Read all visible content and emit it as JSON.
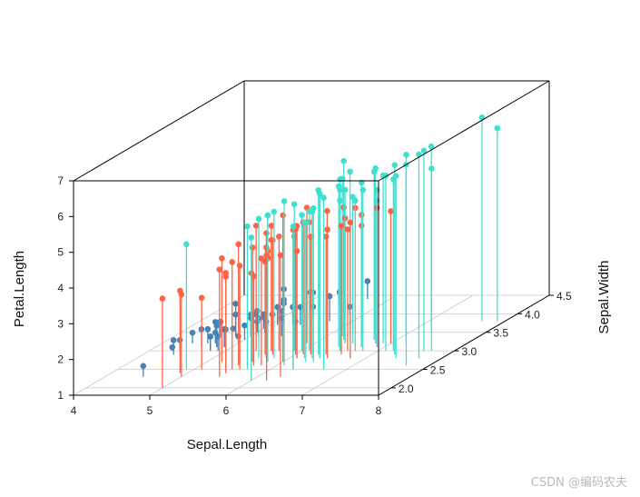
{
  "chart_data": {
    "type": "scatter3d",
    "xlabel": "Sepal.Length",
    "ylabel": "Sepal.Width",
    "zlabel": "Petal.Length",
    "xlim": [
      4,
      8
    ],
    "ylim": [
      1.8,
      4.5
    ],
    "zlim": [
      1,
      7
    ],
    "x_ticks": [
      "4",
      "5",
      "6",
      "7",
      "8"
    ],
    "y_ticks": [
      "2.0",
      "2.5",
      "3.0",
      "3.5",
      "4.0",
      "4.5"
    ],
    "z_ticks": [
      "1",
      "2",
      "3",
      "4",
      "5",
      "6",
      "7"
    ],
    "type_3d": "h",
    "grid": true,
    "series": [
      {
        "color": "#4682b4",
        "points": [
          [
            5.1,
            3.5,
            1.4
          ],
          [
            4.9,
            3.0,
            1.4
          ],
          [
            4.7,
            3.2,
            1.3
          ],
          [
            4.6,
            3.1,
            1.5
          ],
          [
            5.0,
            3.6,
            1.4
          ],
          [
            5.4,
            3.9,
            1.7
          ],
          [
            4.6,
            3.4,
            1.4
          ],
          [
            5.0,
            3.4,
            1.5
          ],
          [
            4.4,
            2.9,
            1.4
          ],
          [
            4.9,
            3.1,
            1.5
          ],
          [
            5.4,
            3.7,
            1.5
          ],
          [
            4.8,
            3.4,
            1.6
          ],
          [
            4.8,
            3.0,
            1.4
          ],
          [
            4.3,
            3.0,
            1.1
          ],
          [
            5.8,
            4.0,
            1.2
          ],
          [
            5.7,
            4.4,
            1.5
          ],
          [
            5.4,
            3.9,
            1.3
          ],
          [
            5.1,
            3.5,
            1.4
          ],
          [
            5.7,
            3.8,
            1.7
          ],
          [
            5.1,
            3.8,
            1.5
          ],
          [
            5.4,
            3.4,
            1.7
          ],
          [
            5.1,
            3.7,
            1.5
          ],
          [
            4.6,
            3.6,
            1.0
          ],
          [
            5.1,
            3.3,
            1.7
          ],
          [
            4.8,
            3.4,
            1.9
          ],
          [
            5.0,
            3.0,
            1.6
          ],
          [
            5.0,
            3.4,
            1.6
          ],
          [
            5.2,
            3.5,
            1.5
          ],
          [
            5.2,
            3.4,
            1.4
          ],
          [
            4.7,
            3.2,
            1.6
          ],
          [
            4.8,
            3.1,
            1.6
          ],
          [
            5.4,
            3.4,
            1.5
          ],
          [
            5.2,
            4.1,
            1.5
          ],
          [
            5.5,
            4.2,
            1.4
          ],
          [
            4.9,
            3.1,
            1.5
          ],
          [
            5.0,
            3.2,
            1.2
          ],
          [
            5.5,
            3.5,
            1.3
          ],
          [
            4.9,
            3.6,
            1.4
          ],
          [
            4.4,
            3.0,
            1.3
          ],
          [
            5.1,
            3.4,
            1.5
          ],
          [
            5.0,
            3.5,
            1.3
          ],
          [
            4.5,
            2.3,
            1.3
          ],
          [
            4.4,
            3.2,
            1.3
          ],
          [
            5.0,
            3.5,
            1.6
          ],
          [
            5.1,
            3.8,
            1.9
          ],
          [
            4.8,
            3.0,
            1.4
          ],
          [
            5.1,
            3.8,
            1.6
          ],
          [
            4.6,
            3.2,
            1.4
          ],
          [
            5.3,
            3.7,
            1.5
          ],
          [
            5.0,
            3.3,
            1.4
          ]
        ]
      },
      {
        "color": "#ff6347",
        "points": [
          [
            7.0,
            3.2,
            4.7
          ],
          [
            6.4,
            3.2,
            4.5
          ],
          [
            6.9,
            3.1,
            4.9
          ],
          [
            5.5,
            2.3,
            4.0
          ],
          [
            6.5,
            2.8,
            4.6
          ],
          [
            5.7,
            2.8,
            4.5
          ],
          [
            6.3,
            3.3,
            4.7
          ],
          [
            4.9,
            2.4,
            3.3
          ],
          [
            6.6,
            2.9,
            4.6
          ],
          [
            5.2,
            2.7,
            3.9
          ],
          [
            5.0,
            2.0,
            3.5
          ],
          [
            5.9,
            3.0,
            4.2
          ],
          [
            6.0,
            2.2,
            4.0
          ],
          [
            6.1,
            2.9,
            4.7
          ],
          [
            5.6,
            2.9,
            3.6
          ],
          [
            6.7,
            3.1,
            4.4
          ],
          [
            5.6,
            3.0,
            4.5
          ],
          [
            5.8,
            2.7,
            4.1
          ],
          [
            6.2,
            2.2,
            4.5
          ],
          [
            5.6,
            2.5,
            3.9
          ],
          [
            5.9,
            3.2,
            4.8
          ],
          [
            6.1,
            2.8,
            4.0
          ],
          [
            6.3,
            2.5,
            4.9
          ],
          [
            6.1,
            2.8,
            4.7
          ],
          [
            6.4,
            2.9,
            4.3
          ],
          [
            6.6,
            3.0,
            4.4
          ],
          [
            6.8,
            2.8,
            4.8
          ],
          [
            6.7,
            3.0,
            5.0
          ],
          [
            6.0,
            2.9,
            4.5
          ],
          [
            5.7,
            2.6,
            3.5
          ],
          [
            5.5,
            2.4,
            3.8
          ],
          [
            5.5,
            2.4,
            3.7
          ],
          [
            5.8,
            2.7,
            3.9
          ],
          [
            6.0,
            2.7,
            5.1
          ],
          [
            5.4,
            3.0,
            4.5
          ],
          [
            6.0,
            3.4,
            4.5
          ],
          [
            6.7,
            3.1,
            4.7
          ],
          [
            6.3,
            2.3,
            4.4
          ],
          [
            5.6,
            3.0,
            4.1
          ],
          [
            5.5,
            2.5,
            4.0
          ],
          [
            5.5,
            2.6,
            4.4
          ],
          [
            6.1,
            3.0,
            4.6
          ],
          [
            5.8,
            2.6,
            4.0
          ],
          [
            5.0,
            2.3,
            3.3
          ],
          [
            5.6,
            2.7,
            4.2
          ],
          [
            5.7,
            3.0,
            4.2
          ],
          [
            5.7,
            2.9,
            4.2
          ],
          [
            6.2,
            2.9,
            4.3
          ],
          [
            5.1,
            2.5,
            3.0
          ],
          [
            5.7,
            2.8,
            4.1
          ]
        ]
      },
      {
        "color": "#40e0d0",
        "points": [
          [
            6.3,
            3.3,
            6.0
          ],
          [
            5.8,
            2.7,
            5.1
          ],
          [
            7.1,
            3.0,
            5.9
          ],
          [
            6.3,
            2.9,
            5.6
          ],
          [
            6.5,
            3.0,
            5.8
          ],
          [
            7.6,
            3.0,
            6.6
          ],
          [
            4.9,
            2.5,
            4.5
          ],
          [
            7.3,
            2.9,
            6.3
          ],
          [
            6.7,
            2.5,
            5.8
          ],
          [
            7.2,
            3.6,
            6.1
          ],
          [
            6.5,
            3.2,
            5.1
          ],
          [
            6.4,
            2.7,
            5.3
          ],
          [
            6.8,
            3.0,
            5.5
          ],
          [
            5.7,
            2.5,
            5.0
          ],
          [
            5.8,
            2.8,
            5.1
          ],
          [
            6.4,
            3.2,
            5.3
          ],
          [
            6.5,
            3.0,
            5.5
          ],
          [
            7.7,
            3.8,
            6.7
          ],
          [
            7.7,
            2.6,
            6.9
          ],
          [
            6.0,
            2.2,
            5.0
          ],
          [
            6.9,
            3.2,
            5.7
          ],
          [
            5.6,
            2.8,
            4.9
          ],
          [
            7.7,
            2.8,
            6.7
          ],
          [
            6.3,
            2.7,
            4.9
          ],
          [
            6.7,
            3.3,
            5.7
          ],
          [
            7.2,
            3.2,
            6.0
          ],
          [
            6.2,
            2.8,
            4.8
          ],
          [
            6.1,
            3.0,
            4.9
          ],
          [
            6.4,
            2.8,
            5.6
          ],
          [
            7.2,
            3.0,
            5.8
          ],
          [
            7.4,
            2.8,
            6.1
          ],
          [
            7.9,
            3.8,
            6.4
          ],
          [
            6.4,
            2.8,
            5.6
          ],
          [
            6.3,
            2.8,
            5.1
          ],
          [
            6.1,
            2.6,
            5.6
          ],
          [
            7.7,
            3.0,
            6.1
          ],
          [
            6.3,
            3.4,
            5.6
          ],
          [
            6.4,
            3.1,
            5.5
          ],
          [
            6.0,
            3.0,
            4.8
          ],
          [
            6.9,
            3.1,
            5.4
          ],
          [
            6.7,
            3.1,
            5.6
          ],
          [
            6.9,
            3.1,
            5.1
          ],
          [
            5.8,
            2.7,
            5.1
          ],
          [
            6.8,
            3.2,
            5.9
          ],
          [
            6.7,
            3.3,
            5.7
          ],
          [
            6.7,
            3.0,
            5.2
          ],
          [
            6.3,
            2.5,
            5.0
          ],
          [
            6.5,
            3.0,
            5.2
          ],
          [
            6.2,
            3.4,
            5.4
          ],
          [
            5.9,
            3.0,
            5.1
          ]
        ]
      }
    ]
  },
  "watermark": "CSDN @编码农夫"
}
